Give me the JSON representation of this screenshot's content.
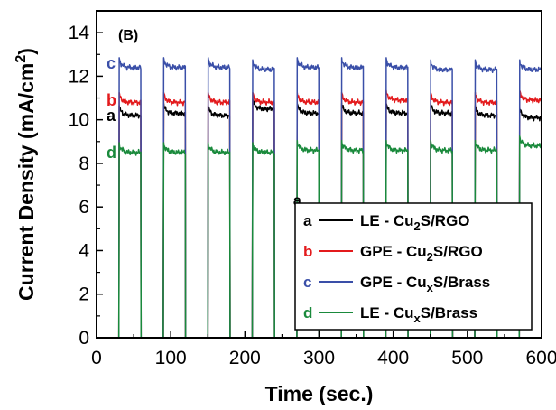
{
  "chart_data": {
    "type": "line",
    "panel_label": "(B)",
    "xlabel": "Time (sec.)",
    "ylabel": "Current Density (mA/cm²)",
    "ylabel_parts": {
      "main": "Current Density ",
      "unit_open": "(mA/cm",
      "unit_sup": "2",
      "unit_close": ")"
    },
    "xlim": [
      0,
      600
    ],
    "ylim": [
      0,
      15
    ],
    "xticks": [
      0,
      100,
      200,
      300,
      400,
      500,
      600
    ],
    "yticks": [
      0,
      2,
      4,
      6,
      8,
      10,
      12,
      14
    ],
    "grid": false,
    "legend_position": "bottom-right",
    "light_on_intervals": [
      [
        30,
        60
      ],
      [
        90,
        120
      ],
      [
        150,
        180
      ],
      [
        210,
        240
      ],
      [
        270,
        300
      ],
      [
        330,
        360
      ],
      [
        390,
        420
      ],
      [
        450,
        480
      ],
      [
        510,
        540
      ],
      [
        570,
        600
      ]
    ],
    "series": [
      {
        "letter": "a",
        "name_prefix": "LE - Cu",
        "name_sub": "2",
        "name_suffix": "S/RGO",
        "color": "#000000",
        "on_values": [
          10.2,
          10.3,
          10.2,
          10.5,
          10.3,
          10.3,
          10.3,
          10.3,
          10.2,
          10.1
        ],
        "off_value": 0.0
      },
      {
        "letter": "b",
        "name_prefix": "GPE - Cu",
        "name_sub": "2",
        "name_suffix": "S/RGO",
        "color": "#e31a1c",
        "on_values": [
          10.8,
          10.8,
          10.8,
          10.8,
          10.8,
          10.8,
          10.9,
          10.8,
          10.8,
          10.9
        ],
        "off_value": 0.0
      },
      {
        "letter": "c",
        "name_prefix": "GPE - Cu",
        "name_sub": "x",
        "name_suffix": "S/Brass",
        "color": "#3a4fa8",
        "on_values": [
          12.4,
          12.4,
          12.4,
          12.3,
          12.4,
          12.4,
          12.4,
          12.3,
          12.3,
          12.3
        ],
        "off_value": 0.0
      },
      {
        "letter": "d",
        "name_prefix": "LE - Cu",
        "name_sub": "x",
        "name_suffix": "S/Brass",
        "color": "#1a8a3c",
        "on_values": [
          8.5,
          8.5,
          8.5,
          8.5,
          8.6,
          8.6,
          8.6,
          8.6,
          8.6,
          8.8
        ],
        "off_value": 0.0
      }
    ],
    "annotations": [
      {
        "text": "a",
        "x": 180,
        "y": 6.1
      }
    ]
  }
}
